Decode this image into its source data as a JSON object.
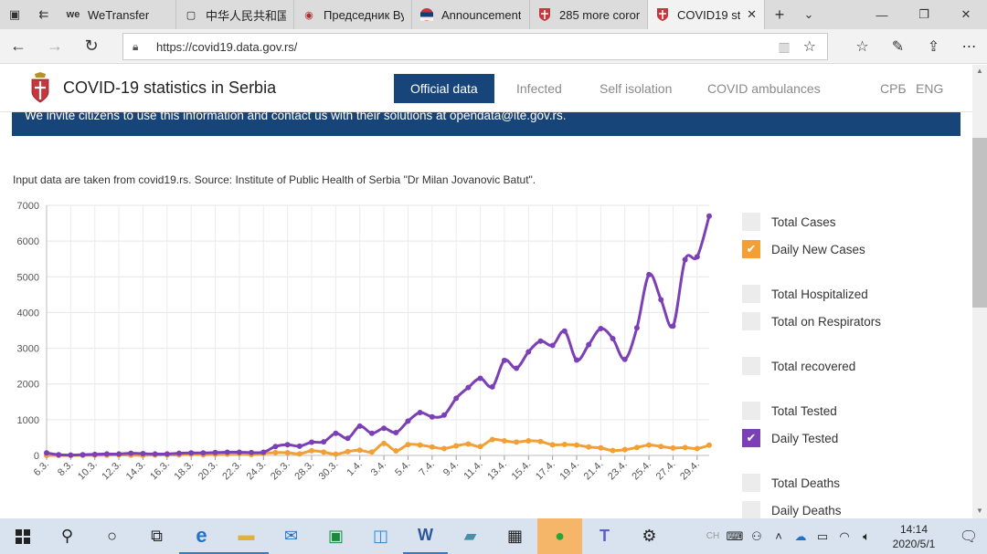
{
  "browser": {
    "tabs": [
      {
        "title": "WeTransfer",
        "icon": "wetransfer-icon"
      },
      {
        "title": "中华人民共和国",
        "icon": "page-icon"
      },
      {
        "title": "Председник Ву",
        "icon": "site-icon"
      },
      {
        "title": "Announcement",
        "icon": "flag-icon"
      },
      {
        "title": "285 more coror",
        "icon": "crest-icon"
      },
      {
        "title": "COVID19 st",
        "icon": "crest-icon",
        "active": true
      }
    ],
    "url": "https://covid19.data.gov.rs/"
  },
  "site": {
    "title": "COVID-19 statistics in Serbia",
    "nav": [
      "Official data",
      "Infected",
      "Self isolation",
      "COVID ambulances"
    ],
    "lang": [
      "СРБ",
      "ENG"
    ],
    "banner": "We invite citizens to use this information and contact us with their solutions at opendata@ite.gov.rs.",
    "source": "Input data are taken from covid19.rs. Source: Institute of Public Health of Serbia \"Dr Milan Jovanovic Batut\"."
  },
  "legend": [
    {
      "label": "Total Cases",
      "checked": false
    },
    {
      "label": "Daily New Cases",
      "checked": true,
      "color": "#f2a035"
    },
    {
      "label": "Total Hospitalized",
      "checked": false
    },
    {
      "label": "Total on Respirators",
      "checked": false
    },
    {
      "label": "Total recovered",
      "checked": false
    },
    {
      "label": "Total Tested",
      "checked": false
    },
    {
      "label": "Daily Tested",
      "checked": true,
      "color": "#7b3fb6"
    },
    {
      "label": "Total Deaths",
      "checked": false
    },
    {
      "label": "Daily Deaths",
      "checked": false
    }
  ],
  "chart_data": {
    "type": "line",
    "ylim": [
      0,
      7000
    ],
    "yticks": [
      0,
      1000,
      2000,
      3000,
      4000,
      5000,
      6000,
      7000
    ],
    "x": [
      "6.3.",
      "7.3.",
      "8.3.",
      "9.3.",
      "10.3.",
      "11.3.",
      "12.3.",
      "13.3.",
      "14.3.",
      "15.3.",
      "16.3.",
      "17.3.",
      "18.3.",
      "19.3.",
      "20.3.",
      "21.3.",
      "22.3.",
      "23.3.",
      "24.3.",
      "25.3.",
      "26.3.",
      "27.3.",
      "28.3.",
      "29.3.",
      "30.3.",
      "31.3.",
      "1.4.",
      "2.4.",
      "3.4.",
      "4.4.",
      "5.4.",
      "6.4.",
      "7.4.",
      "8.4.",
      "9.4.",
      "10.4.",
      "11.4.",
      "12.4.",
      "13.4.",
      "14.4.",
      "15.4.",
      "16.4.",
      "17.4.",
      "18.4.",
      "19.4.",
      "20.4.",
      "21.4.",
      "22.4.",
      "23.4.",
      "24.4.",
      "25.4.",
      "26.4.",
      "27.4.",
      "28.4.",
      "29.4.",
      "30.4."
    ],
    "xtick_labels": [
      "6.3.",
      "8.3.",
      "10.3.",
      "12.3.",
      "14.3.",
      "16.3.",
      "18.3.",
      "20.3.",
      "22.3.",
      "24.3.",
      "26.3.",
      "28.3.",
      "30.3.",
      "1.4.",
      "3.4.",
      "5.4.",
      "7.4.",
      "9.4.",
      "11.4.",
      "13.4.",
      "15.4.",
      "17.4.",
      "19.4.",
      "21.4.",
      "23.4.",
      "25.4.",
      "27.4.",
      "29.4."
    ],
    "series": [
      {
        "name": "Daily Tested",
        "color": "#7b3fb6",
        "values": [
          70,
          20,
          10,
          20,
          30,
          40,
          40,
          60,
          50,
          40,
          40,
          60,
          70,
          70,
          80,
          90,
          90,
          80,
          90,
          250,
          300,
          260,
          370,
          380,
          620,
          480,
          820,
          620,
          760,
          640,
          960,
          1200,
          1080,
          1130,
          1600,
          1900,
          2160,
          1920,
          2660,
          2440,
          2900,
          3200,
          3080,
          3480,
          2670,
          3100,
          3550,
          3270,
          2690,
          3570,
          5060,
          4360,
          3620,
          5480,
          5560,
          6700
        ]
      },
      {
        "name": "Daily New Cases",
        "color": "#f2a035",
        "values": [
          1,
          0,
          1,
          3,
          5,
          7,
          12,
          11,
          2,
          14,
          17,
          15,
          35,
          20,
          31,
          36,
          48,
          27,
          57,
          81,
          77,
          43,
          131,
          92,
          36,
          109,
          148,
          95,
          334,
          129,
          302,
          292,
          236,
          193,
          268,
          318,
          250,
          445,
          408,
          373,
          410,
          391,
          297,
          305,
          290,
          236,
          210,
          137,
          162,
          222,
          290,
          250,
          207,
          220,
          193,
          286
        ]
      }
    ]
  },
  "taskbar": {
    "time": "14:14",
    "date": "2020/5/1"
  }
}
